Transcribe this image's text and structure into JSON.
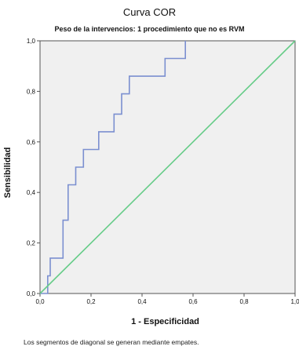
{
  "chart_data": {
    "type": "line",
    "title": "Curva COR",
    "subtitle": "Peso de la intervencios: 1 procedimiento que no es RVM",
    "xlabel": "1 - Especificidad",
    "ylabel": "Sensibilidad",
    "xlim": [
      0,
      1
    ],
    "ylim": [
      0,
      1
    ],
    "x_ticks": [
      "0,0",
      "0,2",
      "0,4",
      "0,6",
      "0,8",
      "1,0"
    ],
    "y_ticks": [
      "0,0",
      "0,2",
      "0,4",
      "0,6",
      "0,8",
      "1,0"
    ],
    "grid": false,
    "legend": "none",
    "series": [
      {
        "color": "#7b8fd0",
        "x": [
          0.0,
          0.03,
          0.03,
          0.04,
          0.04,
          0.09,
          0.09,
          0.11,
          0.11,
          0.14,
          0.14,
          0.17,
          0.17,
          0.18,
          0.18,
          0.23,
          0.23,
          0.29,
          0.29,
          0.3,
          0.3,
          0.32,
          0.32,
          0.35,
          0.35,
          0.49,
          0.49,
          0.57,
          0.57
        ],
        "y": [
          0.0,
          0.0,
          0.07,
          0.07,
          0.14,
          0.14,
          0.29,
          0.29,
          0.43,
          0.43,
          0.5,
          0.5,
          0.57,
          0.57,
          0.57,
          0.57,
          0.64,
          0.64,
          0.71,
          0.71,
          0.71,
          0.71,
          0.79,
          0.79,
          0.86,
          0.86,
          0.93,
          0.93,
          1.0
        ]
      },
      {
        "color": "#66cc88",
        "x": [
          0,
          1
        ],
        "y": [
          0,
          1
        ]
      }
    ],
    "footnote": "Los segmentos de diagonal se generan mediante empates."
  }
}
